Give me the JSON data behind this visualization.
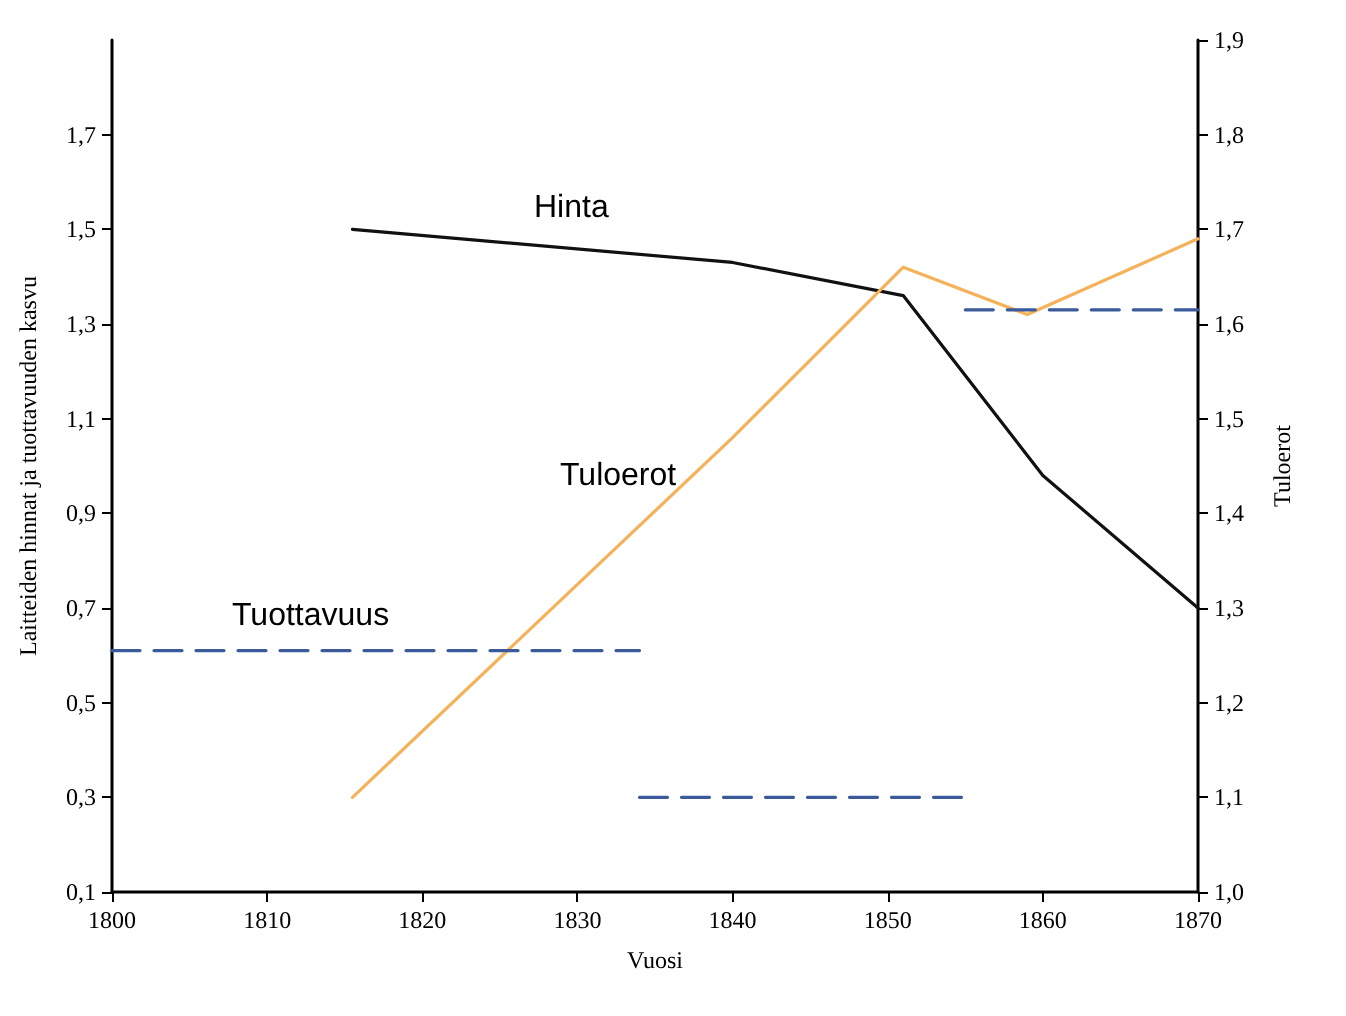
{
  "chart_data": {
    "type": "line",
    "xlabel": "Vuosi",
    "ylabel": "Laitteiden hinnat ja tuottavuuden kasvu",
    "y2label": "Tuloerot",
    "xlim": [
      1800,
      1870
    ],
    "xticks": [
      1800,
      1810,
      1820,
      1830,
      1840,
      1850,
      1860,
      1870
    ],
    "ylim": [
      0.1,
      1.9
    ],
    "yticks": [
      {
        "value": 0.1,
        "label": "0,1"
      },
      {
        "value": 0.3,
        "label": "0,3"
      },
      {
        "value": 0.5,
        "label": "0,5"
      },
      {
        "value": 0.7,
        "label": "0,7"
      },
      {
        "value": 0.9,
        "label": "0,9"
      },
      {
        "value": 1.1,
        "label": "1,1"
      },
      {
        "value": 1.3,
        "label": "1,3"
      },
      {
        "value": 1.5,
        "label": "1,5"
      },
      {
        "value": 1.7,
        "label": "1,7"
      }
    ],
    "y2lim": [
      1.0,
      1.9
    ],
    "y2ticks": [
      {
        "value": 1.0,
        "label": "1,0"
      },
      {
        "value": 1.1,
        "label": "1,1"
      },
      {
        "value": 1.2,
        "label": "1,2"
      },
      {
        "value": 1.3,
        "label": "1,3"
      },
      {
        "value": 1.4,
        "label": "1,4"
      },
      {
        "value": 1.5,
        "label": "1,5"
      },
      {
        "value": 1.6,
        "label": "1,6"
      },
      {
        "value": 1.7,
        "label": "1,7"
      },
      {
        "value": 1.8,
        "label": "1,8"
      },
      {
        "value": 1.9,
        "label": "1,9"
      }
    ],
    "grid": false,
    "legend": false,
    "marker": "none",
    "series": [
      {
        "name": "Hinta",
        "color": "#111111",
        "x": [
          1815.5,
          1840,
          1851,
          1860,
          1870
        ],
        "values": [
          1.5,
          1.43,
          1.36,
          0.98,
          0.7
        ],
        "line_style": "solid"
      },
      {
        "name": "Tuloerot",
        "color": "#f5b25a",
        "axis": "y2",
        "x": [
          1815.5,
          1840,
          1851,
          1859,
          1870
        ],
        "values": [
          1.1,
          1.48,
          1.66,
          1.61,
          1.69
        ],
        "line_style": "solid"
      },
      {
        "name": "Tuottavuus",
        "color": "#3a5a9a",
        "x": [
          1800,
          1834
        ],
        "values": [
          0.61,
          0.61
        ],
        "line_style": "dashed"
      },
      {
        "color": "#3a5a9a",
        "x": [
          1834,
          1855
        ],
        "values": [
          0.3,
          0.3
        ],
        "line_style": "dashed"
      },
      {
        "color": "#3a5a9a",
        "x": [
          1855,
          1870
        ],
        "values": [
          1.33,
          1.33
        ],
        "line_style": "dashed"
      }
    ]
  }
}
